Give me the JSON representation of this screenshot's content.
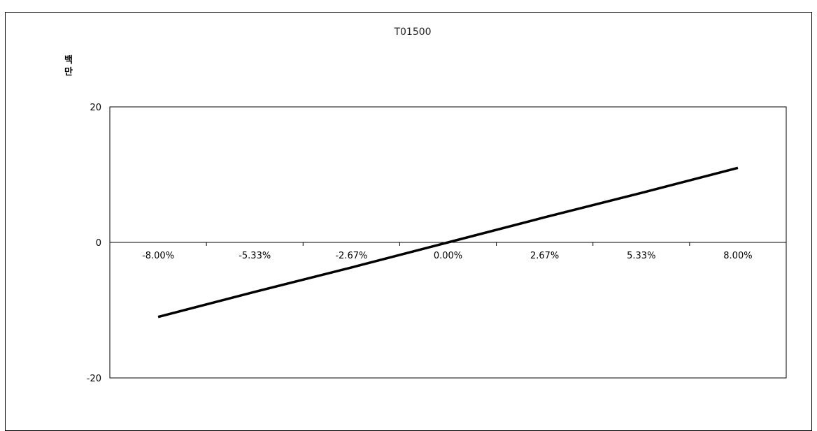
{
  "chart_data": {
    "type": "line",
    "title": "T01500",
    "unit_label": [
      "백",
      "만"
    ],
    "x_tick_labels": [
      "-8.00%",
      "-5.33%",
      "-2.67%",
      "0.00%",
      "2.67%",
      "5.33%",
      "8.00%"
    ],
    "x": [
      -8.0,
      -5.33,
      -2.67,
      0.0,
      2.67,
      5.33,
      8.0
    ],
    "series": [
      {
        "values": [
          -11.0,
          -7.3,
          -3.7,
          0.0,
          3.7,
          7.3,
          11.0
        ],
        "color": "#000000"
      }
    ],
    "ylim": [
      -20,
      20
    ],
    "y_tick_labels": [
      "20",
      "0",
      "-20"
    ],
    "y_ticks": [
      20,
      0,
      -20
    ],
    "grid": false,
    "legend": "none"
  }
}
